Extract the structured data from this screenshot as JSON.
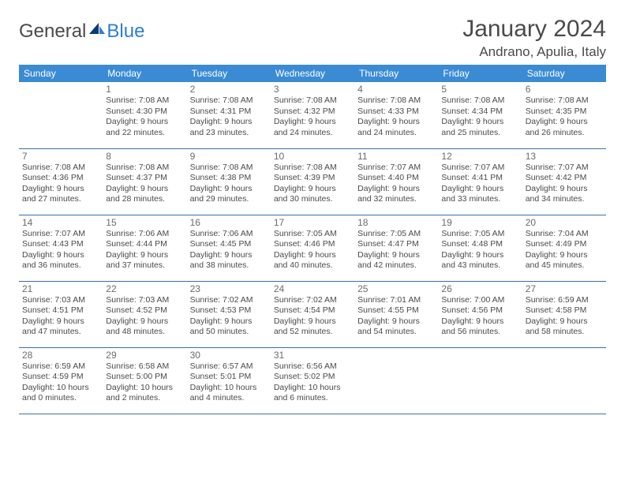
{
  "logo": {
    "general": "General",
    "blue": "Blue"
  },
  "title": "January 2024",
  "location": "Andrano, Apulia, Italy",
  "colors": {
    "header_bg": "#3b8bd4",
    "header_text": "#ffffff",
    "row_border": "#3b6fa8",
    "text": "#4a4a4a",
    "daynum": "#6b6b6b",
    "logo_blue": "#2e7cd6",
    "page_bg": "#ffffff"
  },
  "day_names": [
    "Sunday",
    "Monday",
    "Tuesday",
    "Wednesday",
    "Thursday",
    "Friday",
    "Saturday"
  ],
  "weeks": [
    [
      null,
      {
        "d": "1",
        "sr": "7:08 AM",
        "ss": "4:30 PM",
        "dl": "9 hours and 22 minutes."
      },
      {
        "d": "2",
        "sr": "7:08 AM",
        "ss": "4:31 PM",
        "dl": "9 hours and 23 minutes."
      },
      {
        "d": "3",
        "sr": "7:08 AM",
        "ss": "4:32 PM",
        "dl": "9 hours and 24 minutes."
      },
      {
        "d": "4",
        "sr": "7:08 AM",
        "ss": "4:33 PM",
        "dl": "9 hours and 24 minutes."
      },
      {
        "d": "5",
        "sr": "7:08 AM",
        "ss": "4:34 PM",
        "dl": "9 hours and 25 minutes."
      },
      {
        "d": "6",
        "sr": "7:08 AM",
        "ss": "4:35 PM",
        "dl": "9 hours and 26 minutes."
      }
    ],
    [
      {
        "d": "7",
        "sr": "7:08 AM",
        "ss": "4:36 PM",
        "dl": "9 hours and 27 minutes."
      },
      {
        "d": "8",
        "sr": "7:08 AM",
        "ss": "4:37 PM",
        "dl": "9 hours and 28 minutes."
      },
      {
        "d": "9",
        "sr": "7:08 AM",
        "ss": "4:38 PM",
        "dl": "9 hours and 29 minutes."
      },
      {
        "d": "10",
        "sr": "7:08 AM",
        "ss": "4:39 PM",
        "dl": "9 hours and 30 minutes."
      },
      {
        "d": "11",
        "sr": "7:07 AM",
        "ss": "4:40 PM",
        "dl": "9 hours and 32 minutes."
      },
      {
        "d": "12",
        "sr": "7:07 AM",
        "ss": "4:41 PM",
        "dl": "9 hours and 33 minutes."
      },
      {
        "d": "13",
        "sr": "7:07 AM",
        "ss": "4:42 PM",
        "dl": "9 hours and 34 minutes."
      }
    ],
    [
      {
        "d": "14",
        "sr": "7:07 AM",
        "ss": "4:43 PM",
        "dl": "9 hours and 36 minutes."
      },
      {
        "d": "15",
        "sr": "7:06 AM",
        "ss": "4:44 PM",
        "dl": "9 hours and 37 minutes."
      },
      {
        "d": "16",
        "sr": "7:06 AM",
        "ss": "4:45 PM",
        "dl": "9 hours and 38 minutes."
      },
      {
        "d": "17",
        "sr": "7:05 AM",
        "ss": "4:46 PM",
        "dl": "9 hours and 40 minutes."
      },
      {
        "d": "18",
        "sr": "7:05 AM",
        "ss": "4:47 PM",
        "dl": "9 hours and 42 minutes."
      },
      {
        "d": "19",
        "sr": "7:05 AM",
        "ss": "4:48 PM",
        "dl": "9 hours and 43 minutes."
      },
      {
        "d": "20",
        "sr": "7:04 AM",
        "ss": "4:49 PM",
        "dl": "9 hours and 45 minutes."
      }
    ],
    [
      {
        "d": "21",
        "sr": "7:03 AM",
        "ss": "4:51 PM",
        "dl": "9 hours and 47 minutes."
      },
      {
        "d": "22",
        "sr": "7:03 AM",
        "ss": "4:52 PM",
        "dl": "9 hours and 48 minutes."
      },
      {
        "d": "23",
        "sr": "7:02 AM",
        "ss": "4:53 PM",
        "dl": "9 hours and 50 minutes."
      },
      {
        "d": "24",
        "sr": "7:02 AM",
        "ss": "4:54 PM",
        "dl": "9 hours and 52 minutes."
      },
      {
        "d": "25",
        "sr": "7:01 AM",
        "ss": "4:55 PM",
        "dl": "9 hours and 54 minutes."
      },
      {
        "d": "26",
        "sr": "7:00 AM",
        "ss": "4:56 PM",
        "dl": "9 hours and 56 minutes."
      },
      {
        "d": "27",
        "sr": "6:59 AM",
        "ss": "4:58 PM",
        "dl": "9 hours and 58 minutes."
      }
    ],
    [
      {
        "d": "28",
        "sr": "6:59 AM",
        "ss": "4:59 PM",
        "dl": "10 hours and 0 minutes."
      },
      {
        "d": "29",
        "sr": "6:58 AM",
        "ss": "5:00 PM",
        "dl": "10 hours and 2 minutes."
      },
      {
        "d": "30",
        "sr": "6:57 AM",
        "ss": "5:01 PM",
        "dl": "10 hours and 4 minutes."
      },
      {
        "d": "31",
        "sr": "6:56 AM",
        "ss": "5:02 PM",
        "dl": "10 hours and 6 minutes."
      },
      null,
      null,
      null
    ]
  ],
  "labels": {
    "sunrise": "Sunrise:",
    "sunset": "Sunset:",
    "daylight": "Daylight:"
  }
}
